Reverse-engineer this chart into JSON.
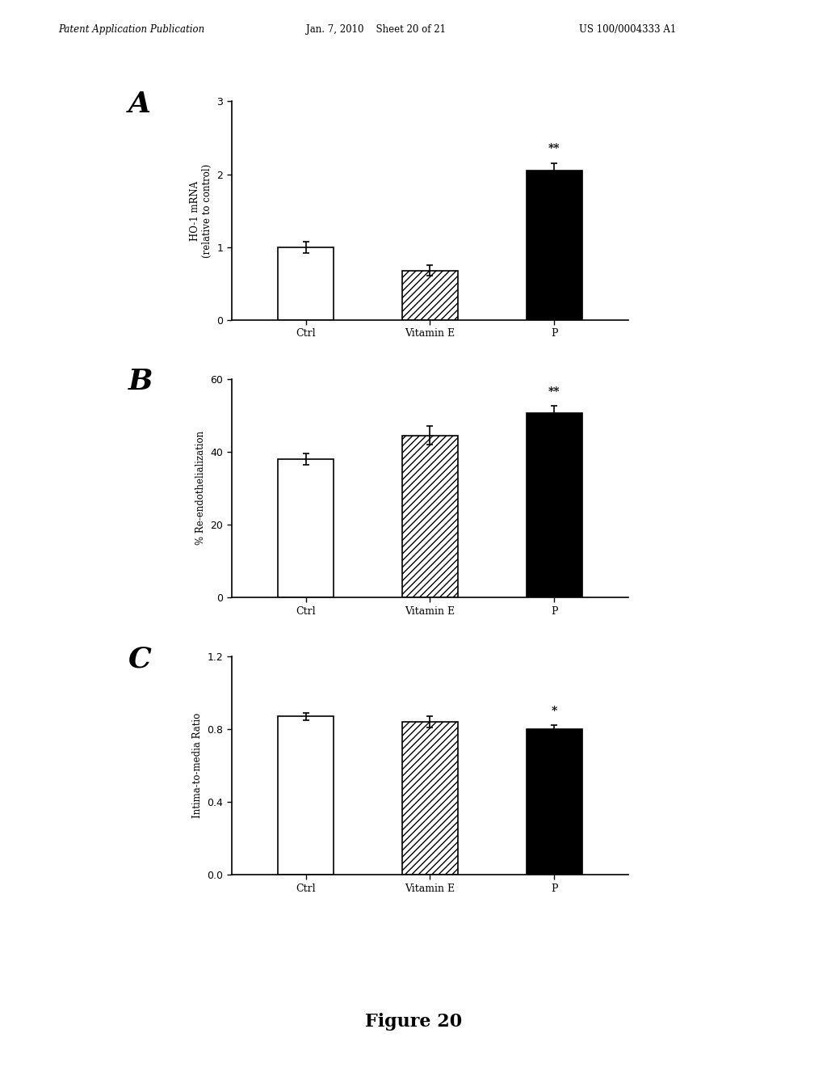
{
  "panel_A": {
    "label": "A",
    "categories": [
      "Ctrl",
      "Vitamin E",
      "P"
    ],
    "values": [
      1.0,
      0.68,
      2.05
    ],
    "errors": [
      0.08,
      0.07,
      0.1
    ],
    "ylim": [
      0,
      3
    ],
    "yticks": [
      0,
      1,
      2,
      3
    ],
    "ylabel": "HO-1 mRNA\n(relative to control)",
    "bar_styles": [
      "white",
      "hatch",
      "black"
    ],
    "significance": [
      "",
      "",
      "**"
    ]
  },
  "panel_B": {
    "label": "B",
    "categories": [
      "Ctrl",
      "Vitamin E",
      "P"
    ],
    "values": [
      38.0,
      44.5,
      50.5
    ],
    "errors": [
      1.5,
      2.5,
      2.0
    ],
    "ylim": [
      0,
      60
    ],
    "yticks": [
      0,
      20,
      40,
      60
    ],
    "ylabel": "% Re-endothelialization",
    "bar_styles": [
      "white",
      "hatch",
      "black"
    ],
    "significance": [
      "",
      "",
      "**"
    ]
  },
  "panel_C": {
    "label": "C",
    "categories": [
      "Ctrl",
      "Vitamin E",
      "P"
    ],
    "values": [
      0.87,
      0.84,
      0.8
    ],
    "errors": [
      0.02,
      0.03,
      0.02
    ],
    "ylim": [
      0.0,
      1.2
    ],
    "yticks": [
      0.0,
      0.4,
      0.8,
      1.2
    ],
    "ylabel": "Intima-to-media Ratio",
    "bar_styles": [
      "white",
      "hatch",
      "black"
    ],
    "significance": [
      "",
      "",
      "*"
    ]
  },
  "figure_label": "Figure 20",
  "header_left": "Patent Application Publication",
  "header_mid": "Jan. 7, 2010    Sheet 20 of 21",
  "header_right": "US 100/0004333 A1",
  "bg_color": "#ffffff",
  "bar_width": 0.45,
  "hatch_pattern": "////"
}
